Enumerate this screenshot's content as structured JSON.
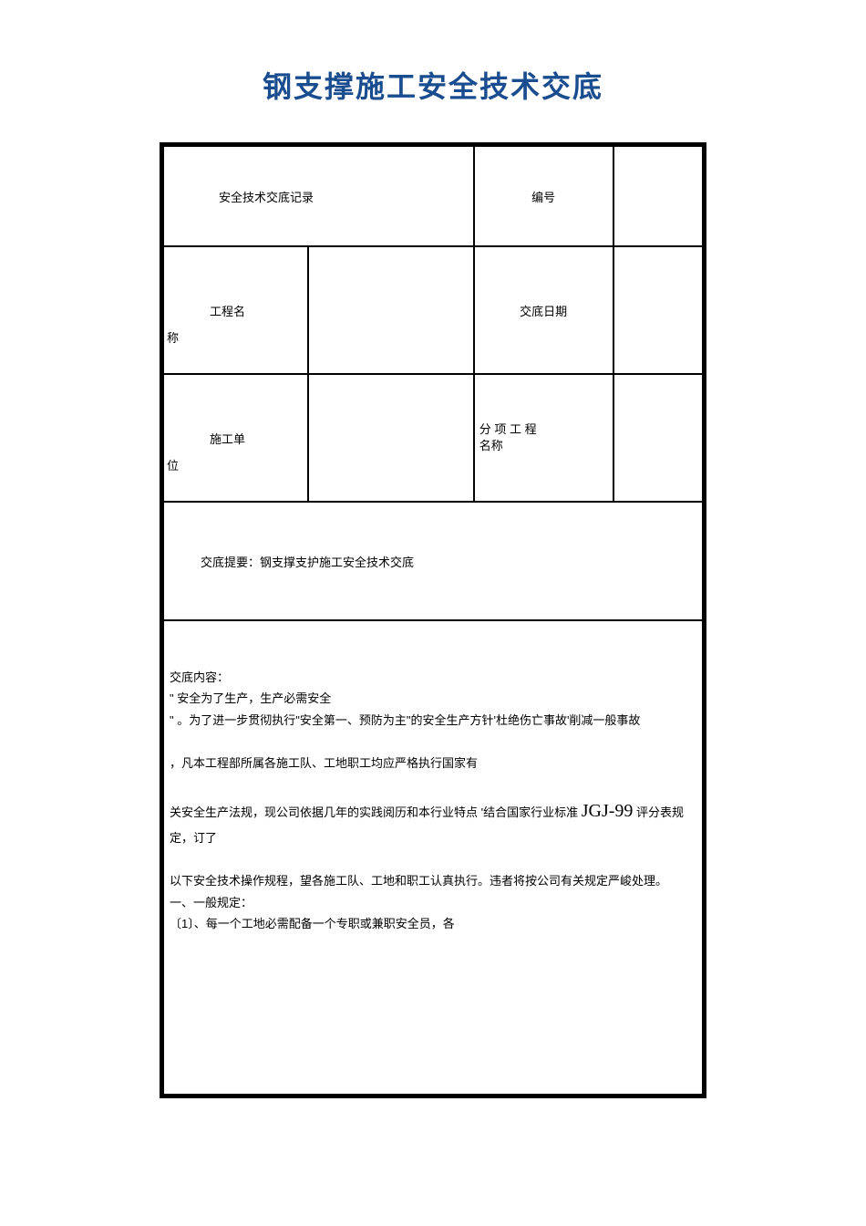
{
  "document": {
    "title": "钢支撑施工安全技术交底",
    "title_color": "#1a4d8f",
    "title_fontsize": 32
  },
  "table": {
    "border_color": "#000000",
    "background_color": "#ffffff",
    "row1": {
      "label1": "安全技术交底记录",
      "label2": "编号",
      "value": ""
    },
    "row2": {
      "label1_main": "工程名",
      "label1_suffix": "称",
      "value1": "",
      "label2": "交底日期",
      "value2": ""
    },
    "row3": {
      "label1_main": "施工单",
      "label1_suffix": "位",
      "value1": "",
      "label2_line1": "分 项 工 程",
      "label2_line2": "名称",
      "value2": ""
    },
    "row4": {
      "text": "交底提要：钢支撑支护施工安全技术交底"
    },
    "row5": {
      "heading": "交底内容：",
      "line1": "\" 安全为了生产，生产必需安全",
      "line2": "\" 。为了进一步贯彻执行\"安全第一、预防为主\"的安全生产方针'杜绝伤亡事故'削减一般事故",
      "line3": "，凡本工程部所属各施工队、工地职工均应严格执行国家有",
      "line4_part1": "关安全生产法规，现公司依据几年的实践阅历和本行业特点 '结合国家行业标准 ",
      "line4_jgj": "JGJ-99",
      "line4_part2": " 评分表规定，订了",
      "line5": "以下安全技术操作规程，望各施工队、工地和职工认真执行。违者将按公司有关规定严峻处理。",
      "line6": "一、一般规定：",
      "line7": "〔1〕、每一个工地必需配备一个专职或兼职安全员，各"
    }
  }
}
